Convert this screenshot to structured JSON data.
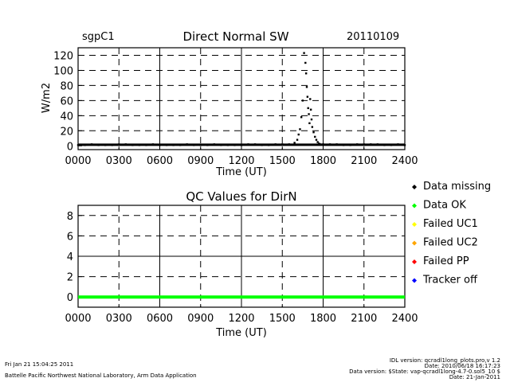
{
  "header": {
    "site": "sgpC1",
    "date": "20110109"
  },
  "footer": {
    "run_time": "Fri Jan 21 15:04:25 2011",
    "org": "Battelle Pacific Northwest National Laboratory, Arm Data Application",
    "idl_version": "IDL version: qcradl1long_plots.pro,v 1.2",
    "idl_date": "Date: 2010/06/18 16:17:23",
    "data_version": "Data version: $State: vap-qcradl1long-4.7-0.sol5_10 $",
    "data_date": "Date: 21-Jan-2011"
  },
  "colors": {
    "missing": "#000000",
    "ok": "#00ff00",
    "uc1": "#ffff00",
    "uc2": "#ffa500",
    "pp": "#ff0000",
    "tracker": "#0000ff"
  },
  "chart_data": [
    {
      "type": "scatter",
      "title": "Direct Normal SW",
      "xlabel": "Time (UT)",
      "ylabel": "W/m2",
      "xlim": [
        0,
        24
      ],
      "ylim": [
        -5,
        130
      ],
      "x_tick_labels": [
        "0000",
        "0300",
        "0600",
        "0900",
        "1200",
        "1500",
        "1800",
        "2100",
        "2400"
      ],
      "y_tick_labels": [
        "0",
        "20",
        "40",
        "60",
        "80",
        "100",
        "120"
      ],
      "grid": true,
      "series": [
        {
          "x": [
            0.0,
            0.5,
            1.0,
            1.5,
            2.0,
            2.5,
            3.0,
            3.5,
            4.0,
            4.5,
            5.0,
            5.5,
            6.0,
            6.5,
            7.0,
            7.5,
            8.0,
            8.5,
            9.0,
            9.5,
            10.0,
            10.5,
            11.0,
            11.5,
            12.0,
            12.5,
            13.0,
            13.5,
            14.0,
            14.5,
            15.0,
            15.5,
            15.9,
            16.1,
            16.2,
            16.3,
            16.4,
            16.5,
            16.6,
            16.7,
            16.75,
            16.8,
            16.85,
            16.9,
            16.95,
            17.0,
            17.05,
            17.1,
            17.15,
            17.2,
            17.3,
            17.4,
            17.5,
            17.6,
            17.7,
            17.8,
            18.0,
            18.5,
            19.0,
            19.5,
            20.0,
            20.5,
            21.0,
            21.5,
            22.0,
            22.5,
            23.0,
            23.5,
            24.0
          ],
          "y": [
            1,
            1,
            2,
            1,
            1,
            1,
            2,
            2,
            1,
            1,
            1,
            2,
            1,
            1,
            1,
            1,
            2,
            1,
            1,
            1,
            2,
            1,
            1,
            1,
            1,
            2,
            2,
            1,
            1,
            2,
            2,
            2,
            4,
            8,
            15,
            22,
            38,
            60,
            123,
            110,
            96,
            78,
            65,
            50,
            42,
            30,
            62,
            48,
            35,
            25,
            18,
            12,
            8,
            5,
            3,
            2,
            2,
            2,
            2,
            1,
            1,
            2,
            2,
            2,
            2,
            1,
            1,
            2,
            1
          ]
        }
      ]
    },
    {
      "type": "line",
      "title": "QC Values for DirN",
      "xlabel": "Time (UT)",
      "ylabel": "",
      "xlim": [
        0,
        24
      ],
      "ylim": [
        -1,
        9
      ],
      "x_tick_labels": [
        "0000",
        "0300",
        "0600",
        "0900",
        "1200",
        "1500",
        "1800",
        "2100",
        "2400"
      ],
      "y_tick_labels": [
        "0",
        "2",
        "4",
        "6",
        "8"
      ],
      "grid": true,
      "series": [
        {
          "x": [
            0,
            24
          ],
          "y": [
            0,
            0
          ]
        }
      ]
    }
  ],
  "legend": {
    "items": [
      {
        "label": "Data missing",
        "color": "#000000"
      },
      {
        "label": "Data OK",
        "color": "#00ff00"
      },
      {
        "label": "Failed UC1",
        "color": "#ffff00"
      },
      {
        "label": "Failed UC2",
        "color": "#ffa500"
      },
      {
        "label": "Failed PP",
        "color": "#ff0000"
      },
      {
        "label": "Tracker off",
        "color": "#0000ff"
      }
    ]
  }
}
